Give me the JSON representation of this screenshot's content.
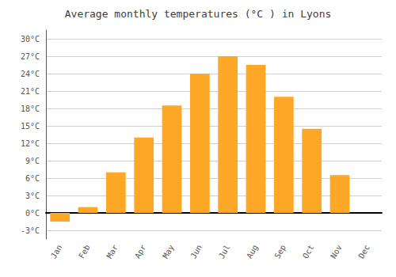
{
  "chart_data": {
    "type": "bar",
    "title": "Average monthly temperatures (°C ) in Lyons",
    "categories": [
      "Jan",
      "Feb",
      "Mar",
      "Apr",
      "May",
      "Jun",
      "Jul",
      "Aug",
      "Sep",
      "Oct",
      "Nov",
      "Dec"
    ],
    "values": [
      -1.5,
      1.0,
      7.0,
      13.0,
      18.5,
      24.0,
      27.0,
      25.5,
      20.0,
      14.5,
      6.5,
      0.0
    ],
    "color": "#FFA726",
    "ylim": [
      -4.5,
      31.5
    ],
    "yticks": [
      {
        "value": -3,
        "label": "-3°C"
      },
      {
        "value": 0,
        "label": "0°C"
      },
      {
        "value": 3,
        "label": "3°C"
      },
      {
        "value": 6,
        "label": "6°C"
      },
      {
        "value": 9,
        "label": "9°C"
      },
      {
        "value": 12,
        "label": "12°C"
      },
      {
        "value": 15,
        "label": "15°C"
      },
      {
        "value": 18,
        "label": "18°C"
      },
      {
        "value": 21,
        "label": "21°C"
      },
      {
        "value": 24,
        "label": "24°C"
      },
      {
        "value": 27,
        "label": "27°C"
      },
      {
        "value": 30,
        "label": "30°C"
      }
    ],
    "grid": true
  }
}
